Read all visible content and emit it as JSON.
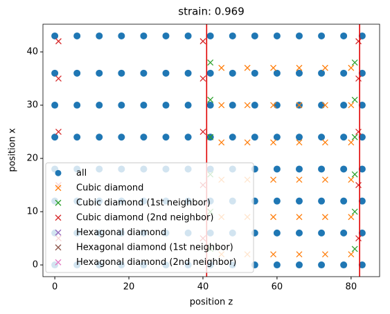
{
  "chart_data": {
    "type": "scatter",
    "title": "strain: 0.969",
    "x_label": "position z",
    "y_label": "position x",
    "xlim": [
      -3.2,
      87.7
    ],
    "ylim": [
      -2.2,
      45.2
    ],
    "xticks": [
      0,
      20,
      40,
      60,
      80
    ],
    "yticks": [
      0,
      10,
      20,
      30,
      40
    ],
    "legend": "lower left",
    "vlines": [
      41,
      82.3
    ],
    "vline_color": "#e00000",
    "series": [
      {
        "name": "all",
        "color": "#1f77b4",
        "marker": "o",
        "x": [
          0,
          6,
          12,
          18,
          24,
          30,
          36,
          42,
          48,
          54,
          60,
          66,
          72,
          78,
          83,
          0,
          6,
          12,
          18,
          24,
          30,
          36,
          42,
          48,
          54,
          60,
          66,
          72,
          78,
          83,
          0,
          6,
          12,
          18,
          24,
          30,
          36,
          42,
          48,
          54,
          60,
          66,
          72,
          78,
          83,
          0,
          6,
          12,
          18,
          24,
          30,
          36,
          42,
          48,
          54,
          60,
          66,
          72,
          78,
          83,
          0,
          6,
          12,
          18,
          24,
          30,
          36,
          42,
          48,
          54,
          60,
          66,
          72,
          78,
          83,
          0,
          6,
          12,
          18,
          24,
          30,
          36,
          42,
          48,
          54,
          60,
          66,
          72,
          78,
          83,
          0,
          6,
          12,
          18,
          24,
          30,
          36,
          42,
          48,
          54,
          60,
          66,
          72,
          78,
          83,
          0,
          6,
          12,
          18,
          24,
          30,
          36,
          42,
          48,
          54,
          60,
          66,
          72,
          78,
          83
        ],
        "y": [
          0,
          0,
          0,
          0,
          0,
          0,
          0,
          0,
          0,
          0,
          0,
          0,
          0,
          0,
          0,
          6,
          6,
          6,
          6,
          6,
          6,
          6,
          6,
          6,
          6,
          6,
          6,
          6,
          6,
          6,
          12,
          12,
          12,
          12,
          12,
          12,
          12,
          12,
          12,
          12,
          12,
          12,
          12,
          12,
          12,
          18,
          18,
          18,
          18,
          18,
          18,
          18,
          18,
          18,
          18,
          18,
          18,
          18,
          18,
          18,
          24,
          24,
          24,
          24,
          24,
          24,
          24,
          24,
          24,
          24,
          24,
          24,
          24,
          24,
          24,
          30,
          30,
          30,
          30,
          30,
          30,
          30,
          30,
          30,
          30,
          30,
          30,
          30,
          30,
          30,
          36,
          36,
          36,
          36,
          36,
          36,
          36,
          36,
          36,
          36,
          36,
          36,
          36,
          36,
          36,
          43,
          43,
          43,
          43,
          43,
          43,
          43,
          43,
          43,
          43,
          43,
          43,
          43,
          43,
          43
        ]
      },
      {
        "name": "Cubic diamond",
        "color": "#ff7f0e",
        "marker": "x",
        "x": [
          45,
          52,
          59,
          66,
          73,
          80,
          45,
          52,
          59,
          66,
          73,
          80,
          45,
          52,
          59,
          66,
          73,
          80,
          45,
          52,
          59,
          66,
          73,
          80,
          45,
          52,
          59,
          66,
          73,
          80,
          45,
          52,
          59,
          66,
          73,
          80
        ],
        "y": [
          2,
          2,
          2,
          2,
          2,
          2,
          9,
          9,
          9,
          9,
          9,
          9,
          16,
          16,
          16,
          16,
          16,
          16,
          23,
          23,
          23,
          23,
          23,
          23,
          30,
          30,
          30,
          30,
          30,
          30,
          37,
          37,
          37,
          37,
          37,
          37
        ]
      },
      {
        "name": "Cubic diamond (1st neighbor)",
        "color": "#2ca02c",
        "marker": "x",
        "x": [
          42,
          81,
          42,
          81,
          42,
          81,
          42,
          81,
          42,
          81,
          42,
          81
        ],
        "y": [
          3,
          3,
          10,
          10,
          17,
          17,
          24,
          24,
          31,
          31,
          38,
          38
        ]
      },
      {
        "name": "Cubic diamond (2nd neighbor)",
        "color": "#d62728",
        "marker": "x",
        "x": [
          1,
          40,
          82,
          1,
          40,
          82,
          1,
          40,
          82,
          1,
          40,
          82,
          1,
          40,
          82
        ],
        "y": [
          5,
          5,
          5,
          15,
          15,
          15,
          25,
          25,
          25,
          35,
          35,
          35,
          42,
          42,
          42
        ]
      },
      {
        "name": "Hexagonal diamond",
        "color": "#9467bd",
        "marker": "x",
        "x": [],
        "y": []
      },
      {
        "name": "Hexagonal diamond (1st neighbor)",
        "color": "#8c564b",
        "marker": "x",
        "x": [],
        "y": []
      },
      {
        "name": "Hexagonal diamond (2nd neighbor)",
        "color": "#e377c2",
        "marker": "x",
        "x": [],
        "y": []
      }
    ]
  }
}
